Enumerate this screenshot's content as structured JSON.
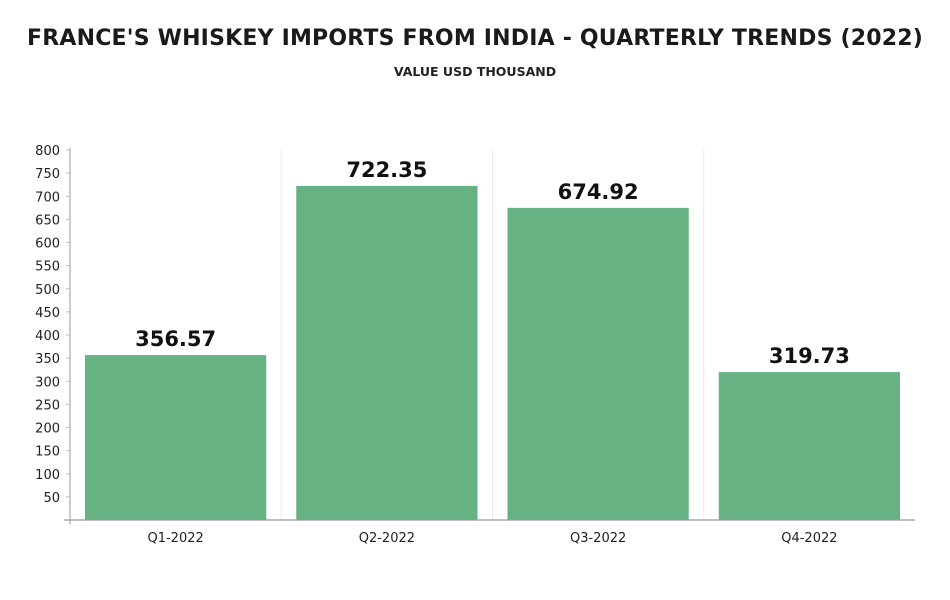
{
  "chart_data": {
    "type": "bar",
    "title": "FRANCE'S WHISKEY IMPORTS FROM INDIA - QUARTERLY TRENDS (2022)",
    "subtitle": "VALUE USD THOUSAND",
    "xlabel": "",
    "ylabel": "",
    "categories": [
      "Q1-2022",
      "Q2-2022",
      "Q3-2022",
      "Q4-2022"
    ],
    "values": [
      356.57,
      722.35,
      674.92,
      319.73
    ],
    "data_labels": [
      "356.57",
      "722.35",
      "674.92",
      "319.73"
    ],
    "ylim": [
      0,
      800
    ],
    "yticks": [
      50,
      100,
      150,
      200,
      250,
      300,
      350,
      400,
      450,
      500,
      550,
      600,
      650,
      700,
      750,
      800
    ],
    "grid": false,
    "legend": "none",
    "bar_color": "#66b283"
  }
}
